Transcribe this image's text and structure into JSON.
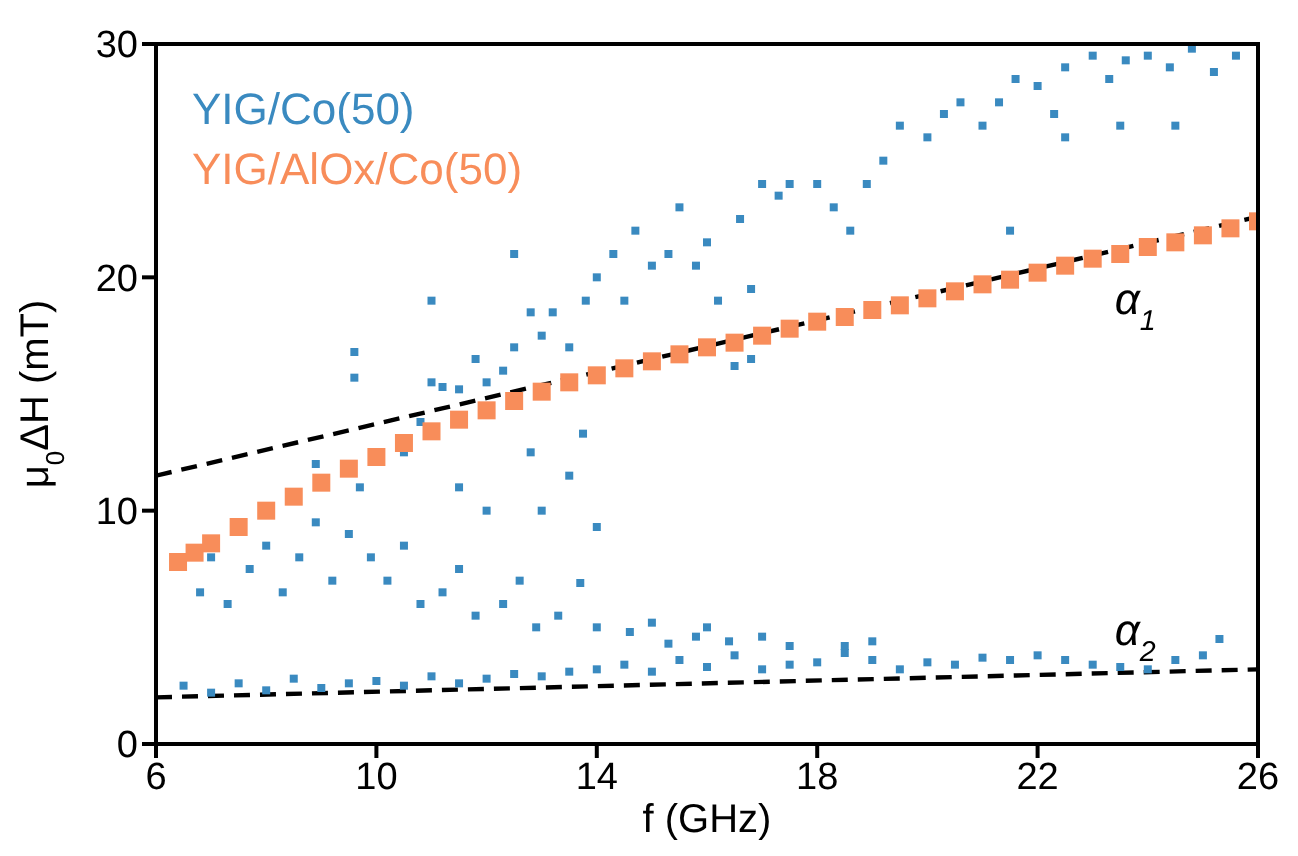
{
  "chart_data": {
    "type": "scatter",
    "xlabel": "f (GHz)",
    "ylabel": "μ$_{0}$ΔH (mT)",
    "xlim": [
      6,
      26
    ],
    "ylim": [
      0,
      30
    ],
    "xticks": [
      6,
      10,
      14,
      18,
      22,
      26
    ],
    "yticks": [
      0,
      10,
      20,
      30
    ],
    "legend": "top left",
    "marker": "square",
    "annotations": [
      "α$_{1}$",
      "α$_{2}$"
    ],
    "series": [
      {
        "name": "YIG/Co(50)",
        "color": "#3a8ac0",
        "x": [
          6.5,
          7,
          7.5,
          8,
          8.5,
          9,
          9.5,
          10,
          10.5,
          11,
          11.5,
          12,
          12.5,
          13,
          13.5,
          14,
          14.5,
          15,
          15.5,
          16,
          16.5,
          17,
          17.5,
          18,
          18.5,
          19,
          19.5,
          20,
          20.5,
          21,
          21.5,
          22,
          22.5,
          23,
          23.5,
          24,
          24.5,
          25,
          25.3,
          6.8,
          7,
          7.3,
          7.7,
          8,
          8.3,
          8.6,
          8.9,
          9.2,
          9.5,
          9.7,
          9.9,
          10.2,
          10.5,
          10.8,
          11.2,
          11.5,
          11.8,
          12.3,
          12.6,
          12.9,
          13.3,
          13.7,
          14,
          14.6,
          15,
          15.3,
          15.8,
          16,
          16.4,
          17,
          17.5,
          18.5,
          19,
          13,
          13.5,
          13.75,
          14,
          12.8,
          12,
          11.5,
          10.5,
          10.8,
          11,
          11.2,
          11.5,
          11.8,
          12,
          12.3,
          12.5,
          12.8,
          13,
          13.2,
          13.5,
          13.8,
          14,
          14.3,
          14.5,
          14.7,
          15,
          15.3,
          15.5,
          15.8,
          16,
          16.2,
          16.5,
          16.8,
          16.6,
          17,
          17.3,
          17.5,
          18,
          18.3,
          18.6,
          18.9,
          19.2,
          19.5,
          20,
          20.3,
          20.6,
          21,
          21.3,
          21.6,
          22,
          22.3,
          22.5,
          23,
          23.3,
          23.6,
          24,
          24.4,
          24.8,
          25.2,
          25.6,
          9.6,
          9.6,
          11,
          12.5,
          8.9,
          23.5,
          22.5,
          21.5,
          24.5,
          16.8
        ],
        "values": [
          2.5,
          2.2,
          2.6,
          2.3,
          2.8,
          2.4,
          2.6,
          2.7,
          2.5,
          2.9,
          2.6,
          2.8,
          3,
          2.9,
          3.1,
          3.2,
          3.4,
          3.1,
          3.6,
          3.3,
          3.8,
          3.2,
          3.4,
          3.5,
          3.9,
          3.6,
          3.2,
          3.5,
          3.4,
          3.7,
          3.6,
          3.8,
          3.6,
          3.4,
          3.3,
          3.2,
          3.6,
          3.8,
          4.5,
          6.5,
          8,
          6,
          7.5,
          8.5,
          6.5,
          8,
          9.5,
          7,
          9,
          11,
          8,
          7,
          8.5,
          6,
          6.5,
          7.5,
          5.5,
          6,
          7,
          5,
          5.5,
          6.9,
          5,
          4.8,
          5.2,
          4.3,
          4.6,
          5,
          4.4,
          4.6,
          4.2,
          4.2,
          4.4,
          10,
          11.5,
          13.3,
          9.3,
          12.5,
          10,
          11,
          12.5,
          13.8,
          15.5,
          15.3,
          15.2,
          16.5,
          15.5,
          16,
          17,
          18.5,
          17.5,
          18.5,
          17,
          19,
          20,
          21,
          19,
          22,
          20.5,
          21,
          23,
          20.5,
          21.5,
          19,
          16.2,
          16.5,
          22.5,
          24,
          23.5,
          24,
          24,
          23,
          22,
          24,
          25,
          26.5,
          26,
          27,
          27.5,
          26.5,
          27.5,
          28.5,
          28.2,
          27,
          29,
          29.5,
          28.5,
          29.3,
          29.5,
          29,
          29.8,
          28.8,
          29.5,
          16.8,
          15.7,
          19,
          21,
          12,
          26.5,
          26,
          22,
          26.5,
          19.5
        ]
      },
      {
        "name": "YIG/AlOx/Co(50)",
        "color": "#f88d5a",
        "x": [
          6.4,
          6.7,
          7,
          7.5,
          8,
          8.5,
          9,
          9.5,
          10,
          10.5,
          11,
          11.5,
          12,
          12.5,
          13,
          13.5,
          14,
          14.5,
          15,
          15.5,
          16,
          16.5,
          17,
          17.5,
          18,
          18.5,
          19,
          19.5,
          20,
          20.5,
          21,
          21.5,
          22,
          22.5,
          23,
          23.5,
          24,
          24.5,
          25,
          25.5,
          26
        ],
        "values": [
          7.8,
          8.2,
          8.6,
          9.3,
          10,
          10.6,
          11.2,
          11.8,
          12.3,
          12.9,
          13.4,
          13.9,
          14.3,
          14.7,
          15.1,
          15.5,
          15.8,
          16.1,
          16.4,
          16.7,
          17,
          17.2,
          17.5,
          17.8,
          18.1,
          18.3,
          18.6,
          18.8,
          19.1,
          19.4,
          19.7,
          19.9,
          20.2,
          20.5,
          20.8,
          21,
          21.3,
          21.5,
          21.8,
          22.1,
          22.4
        ]
      },
      {
        "type": "line",
        "color": "#000000",
        "line_style": "dashed",
        "marker": "none",
        "x": [
          6,
          26
        ],
        "values": [
          11.5,
          22.6
        ]
      },
      {
        "type": "line",
        "color": "#000000",
        "line_style": "dashed",
        "marker": "none",
        "x": [
          6,
          26
        ],
        "values": [
          2,
          3.2
        ]
      }
    ]
  }
}
